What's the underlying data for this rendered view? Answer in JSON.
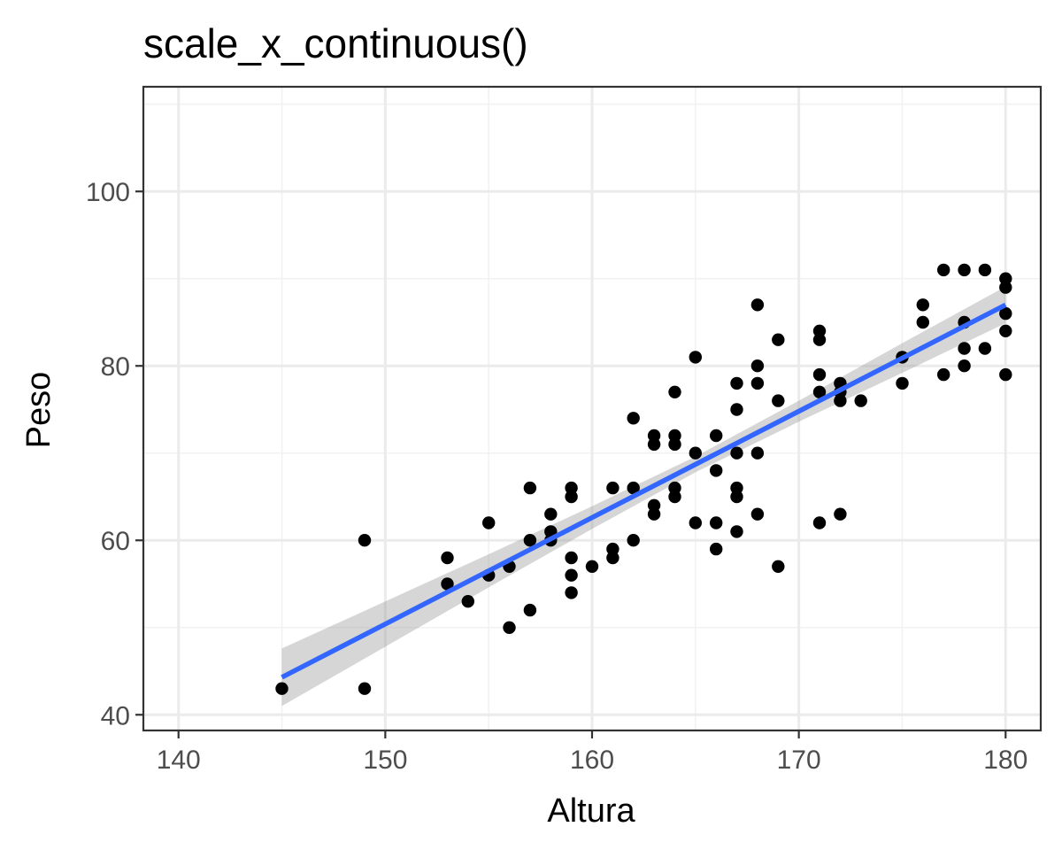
{
  "chart_data": {
    "type": "scatter",
    "title": "scale_x_continuous()",
    "xlabel": "Altura",
    "ylabel": "Peso",
    "xlim": [
      138.3,
      181.7
    ],
    "ylim": [
      38.2,
      112.0
    ],
    "x_ticks": [
      140,
      150,
      160,
      170,
      180
    ],
    "y_ticks": [
      40,
      60,
      80,
      100
    ],
    "grid": true,
    "colors": {
      "points": "#000000",
      "line": "#3366ff",
      "ribbon": "#999999"
    },
    "points": [
      [
        145,
        43
      ],
      [
        149,
        60
      ],
      [
        149,
        43
      ],
      [
        153,
        58
      ],
      [
        153,
        55
      ],
      [
        154,
        53
      ],
      [
        155,
        62
      ],
      [
        155,
        56
      ],
      [
        156,
        57
      ],
      [
        156,
        50
      ],
      [
        157,
        66
      ],
      [
        157,
        60
      ],
      [
        157,
        52
      ],
      [
        158,
        63
      ],
      [
        158,
        61
      ],
      [
        158,
        60
      ],
      [
        159,
        66
      ],
      [
        159,
        65
      ],
      [
        159,
        58
      ],
      [
        159,
        56
      ],
      [
        159,
        54
      ],
      [
        160,
        57
      ],
      [
        161,
        66
      ],
      [
        161,
        59
      ],
      [
        161,
        58
      ],
      [
        162,
        74
      ],
      [
        162,
        66
      ],
      [
        162,
        60
      ],
      [
        163,
        72
      ],
      [
        163,
        71
      ],
      [
        163,
        64
      ],
      [
        163,
        63
      ],
      [
        164,
        77
      ],
      [
        164,
        72
      ],
      [
        164,
        71
      ],
      [
        164,
        66
      ],
      [
        164,
        65
      ],
      [
        165,
        81
      ],
      [
        165,
        70
      ],
      [
        165,
        62
      ],
      [
        166,
        72
      ],
      [
        166,
        68
      ],
      [
        166,
        62
      ],
      [
        166,
        59
      ],
      [
        167,
        78
      ],
      [
        167,
        75
      ],
      [
        167,
        70
      ],
      [
        167,
        66
      ],
      [
        167,
        65
      ],
      [
        167,
        61
      ],
      [
        168,
        87
      ],
      [
        168,
        80
      ],
      [
        168,
        78
      ],
      [
        168,
        70
      ],
      [
        168,
        63
      ],
      [
        169,
        83
      ],
      [
        169,
        76
      ],
      [
        169,
        57
      ],
      [
        171,
        84
      ],
      [
        171,
        83
      ],
      [
        171,
        79
      ],
      [
        171,
        77
      ],
      [
        171,
        62
      ],
      [
        172,
        78
      ],
      [
        172,
        77
      ],
      [
        172,
        76
      ],
      [
        172,
        63
      ],
      [
        173,
        76
      ],
      [
        175,
        81
      ],
      [
        175,
        78
      ],
      [
        176,
        87
      ],
      [
        176,
        85
      ],
      [
        177,
        91
      ],
      [
        177,
        79
      ],
      [
        178,
        91
      ],
      [
        178,
        85
      ],
      [
        178,
        82
      ],
      [
        178,
        80
      ],
      [
        179,
        91
      ],
      [
        179,
        82
      ],
      [
        180,
        90
      ],
      [
        180,
        89
      ],
      [
        180,
        86
      ],
      [
        180,
        84
      ],
      [
        180,
        79
      ]
    ],
    "smooth": {
      "method": "lm",
      "x": [
        145,
        150,
        155,
        160,
        165,
        170,
        175,
        180
      ],
      "fit": [
        44.3,
        50.4,
        56.5,
        62.6,
        68.7,
        74.8,
        80.9,
        87.0
      ],
      "lower": [
        41.0,
        47.8,
        54.6,
        61.3,
        67.8,
        73.6,
        79.2,
        84.9
      ],
      "upper": [
        47.6,
        53.0,
        58.4,
        63.9,
        69.6,
        76.0,
        82.6,
        89.1
      ]
    }
  }
}
